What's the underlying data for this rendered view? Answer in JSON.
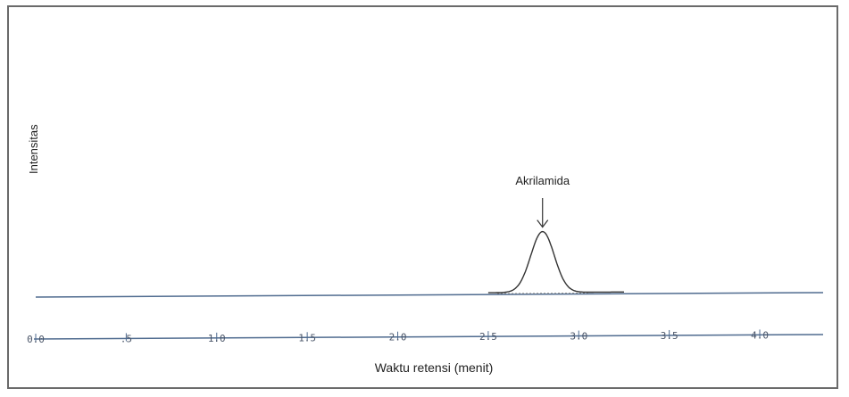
{
  "chart_data": {
    "type": "line",
    "title": "",
    "xlabel": "Waktu retensi (menit)",
    "ylabel": "Intensitas",
    "xlim": [
      0,
      4.35
    ],
    "x_ticks": [
      "0.0",
      ".5",
      "1.0",
      "1.5",
      "2.0",
      "2.5",
      "3.0",
      "3.5",
      "4.0"
    ],
    "x_tick_values": [
      0,
      0.5,
      1.0,
      1.5,
      2.0,
      2.5,
      3.0,
      3.5,
      4.0
    ],
    "grid": false,
    "series": [
      {
        "peak_center": 2.8,
        "peak_height": 0.62,
        "peak_sigma": 0.065,
        "baseline_start": 0.0,
        "baseline_end": 0.05,
        "color": "#333333"
      }
    ],
    "annotations": [
      {
        "text": "Akrilamida",
        "x": 2.8
      }
    ],
    "colors": {
      "baseline": "#4f6b8f",
      "axis": "#4f6b8f",
      "peak": "#333333",
      "frame": "#6a6a6a"
    }
  }
}
